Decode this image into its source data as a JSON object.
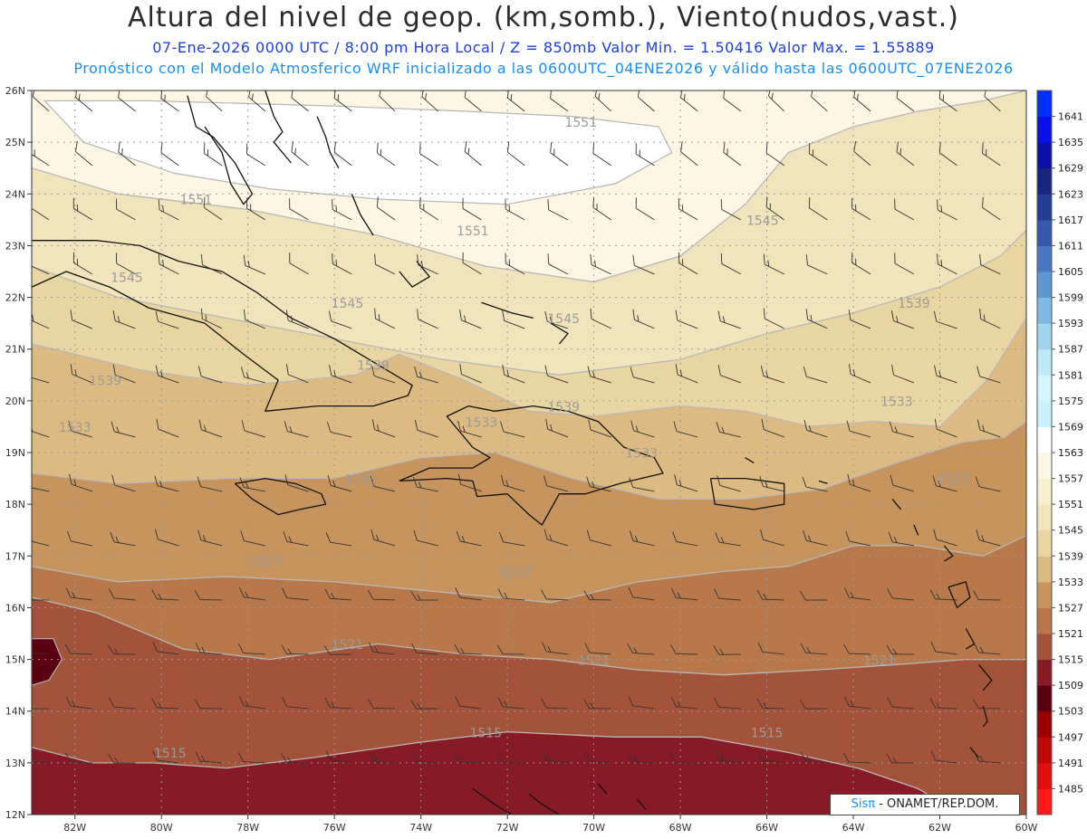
{
  "title": "Altura del nivel de geop. (km,somb.), Viento(nudos,vast.)",
  "subtitle": "07-Ene-2026  0000 UTC / 8:00 pm Hora Local / Z = 850mb     Valor Min. = 1.50416  Valor Max. = 1.55889",
  "subtitle2": "Pronóstico con el Modelo Atmosferico WRF inicializado a las 0600UTC_04ENE2026 y válido hasta las  0600UTC_07ENE2026",
  "credit": {
    "brand": "Sisπ",
    "org": " - ONAMET/REP.DOM."
  },
  "axes": {
    "lat_ticks": [
      "12N",
      "13N",
      "14N",
      "15N",
      "16N",
      "17N",
      "18N",
      "19N",
      "20N",
      "21N",
      "22N",
      "23N",
      "24N",
      "25N",
      "26N"
    ],
    "lon_ticks": [
      "82W",
      "80W",
      "78W",
      "76W",
      "74W",
      "72W",
      "70W",
      "68W",
      "66W",
      "64W",
      "62W",
      "60W"
    ]
  },
  "colorbar": {
    "levels": [
      "1485",
      "1491",
      "1497",
      "1503",
      "1509",
      "1515",
      "1521",
      "1527",
      "1533",
      "1539",
      "1545",
      "1551",
      "1557",
      "1563",
      "1569",
      "1575",
      "1581",
      "1587",
      "1593",
      "1599",
      "1605",
      "1611",
      "1617",
      "1623",
      "1629",
      "1635",
      "1641"
    ],
    "colors": [
      "#ff1a1a",
      "#e01010",
      "#c00808",
      "#9a0000",
      "#5a0010",
      "#861a25",
      "#a3533a",
      "#b8784a",
      "#c6945c",
      "#dcbb82",
      "#e9d5a2",
      "#f1e4bd",
      "#f7efd0",
      "#fcf6e2",
      "#ffffff",
      "#c9f1fb",
      "#d6f4fc",
      "#bfe9f8",
      "#9fd3ee",
      "#7fb9e2",
      "#5c98d2",
      "#4a78c0",
      "#3558aa",
      "#243c94",
      "#1a257e",
      "#0c10a8",
      "#0a10e8",
      "#0030ff"
    ]
  },
  "chart_data": {
    "type": "heatmap",
    "title": "Altura del nivel de geop. (km,somb.), Viento(nudos,vast.)",
    "xlim": [
      -83,
      -60
    ],
    "ylim": [
      12,
      26
    ],
    "valid_time": "07-Ene-2026 0000 UTC",
    "level": "850mb",
    "min_value": 1.50416,
    "max_value": 1.55889,
    "contour_labels": [
      {
        "v": "1551",
        "lon": -70.3,
        "lat": 25.3
      },
      {
        "v": "1551",
        "lon": -79.2,
        "lat": 23.8
      },
      {
        "v": "1551",
        "lon": -72.8,
        "lat": 23.2
      },
      {
        "v": "1545",
        "lon": -66.1,
        "lat": 23.4
      },
      {
        "v": "1545",
        "lon": -80.8,
        "lat": 22.3
      },
      {
        "v": "1545",
        "lon": -75.7,
        "lat": 21.8
      },
      {
        "v": "1545",
        "lon": -70.7,
        "lat": 21.5
      },
      {
        "v": "1539",
        "lon": -62.6,
        "lat": 21.8
      },
      {
        "v": "1539",
        "lon": -81.3,
        "lat": 20.3
      },
      {
        "v": "1539",
        "lon": -75.1,
        "lat": 20.6
      },
      {
        "v": "1539",
        "lon": -70.7,
        "lat": 19.8
      },
      {
        "v": "1533",
        "lon": -63.0,
        "lat": 19.9
      },
      {
        "v": "1533",
        "lon": -82.0,
        "lat": 19.4
      },
      {
        "v": "1533",
        "lon": -72.6,
        "lat": 19.5
      },
      {
        "v": "1533",
        "lon": -75.4,
        "lat": 18.4
      },
      {
        "v": "1533",
        "lon": -68.9,
        "lat": 18.9
      },
      {
        "v": "1527",
        "lon": -61.7,
        "lat": 18.4
      },
      {
        "v": "1527",
        "lon": -77.6,
        "lat": 16.8
      },
      {
        "v": "1527",
        "lon": -71.8,
        "lat": 16.6
      },
      {
        "v": "1521",
        "lon": -75.7,
        "lat": 15.2
      },
      {
        "v": "1521",
        "lon": -70.0,
        "lat": 14.9
      },
      {
        "v": "1521",
        "lon": -63.4,
        "lat": 14.9
      },
      {
        "v": "1515",
        "lon": -72.5,
        "lat": 13.5
      },
      {
        "v": "1515",
        "lon": -79.8,
        "lat": 13.1
      },
      {
        "v": "1515",
        "lon": -66.0,
        "lat": 13.5
      }
    ],
    "boundaries": [
      {
        "level": "1563",
        "closed": true,
        "pts": [
          [
            -80.3,
            25.8
          ],
          [
            -76,
            25.7
          ],
          [
            -73,
            25.6
          ],
          [
            -70.5,
            25.5
          ],
          [
            -68.5,
            25.3
          ],
          [
            -68.2,
            24.8
          ],
          [
            -69.5,
            24.2
          ],
          [
            -72,
            23.8
          ],
          [
            -75,
            23.9
          ],
          [
            -77.5,
            24.1
          ],
          [
            -79.7,
            24.4
          ],
          [
            -81.8,
            25.0
          ],
          [
            -82.7,
            25.8
          ]
        ]
      },
      {
        "level": "1551",
        "pts": [
          [
            -83,
            24.5
          ],
          [
            -81,
            24.0
          ],
          [
            -78,
            23.7
          ],
          [
            -75,
            23.2
          ],
          [
            -72.5,
            22.6
          ],
          [
            -70,
            22.3
          ],
          [
            -68,
            22.8
          ],
          [
            -66.5,
            23.8
          ],
          [
            -65.5,
            24.8
          ],
          [
            -64,
            25.3
          ],
          [
            -62.5,
            25.6
          ],
          [
            -61,
            25.8
          ],
          [
            -60,
            26
          ]
        ]
      },
      {
        "level": "1545",
        "pts": [
          [
            -83,
            22.6
          ],
          [
            -81,
            22.0
          ],
          [
            -78.5,
            21.6
          ],
          [
            -76,
            21.2
          ],
          [
            -73.5,
            20.8
          ],
          [
            -70.8,
            20.5
          ],
          [
            -68,
            20.8
          ],
          [
            -66,
            21.3
          ],
          [
            -64,
            21.7
          ],
          [
            -62,
            22.2
          ],
          [
            -60.6,
            22.8
          ],
          [
            -60,
            23.3
          ]
        ]
      },
      {
        "level": "1539",
        "pts": [
          [
            -83,
            21.1
          ],
          [
            -80.5,
            20.6
          ],
          [
            -78,
            20.3
          ],
          [
            -75.5,
            20.5
          ],
          [
            -74.5,
            20.9
          ],
          [
            -73,
            20.4
          ],
          [
            -71.5,
            19.8
          ],
          [
            -70,
            19.7
          ],
          [
            -68,
            19.9
          ],
          [
            -66.5,
            19.8
          ],
          [
            -65,
            19.5
          ],
          [
            -63.5,
            19.6
          ],
          [
            -62,
            19.5
          ],
          [
            -60.9,
            20.4
          ],
          [
            -60,
            21.6
          ]
        ]
      },
      {
        "level": "1533",
        "pts": [
          [
            -83,
            18.6
          ],
          [
            -81,
            18.4
          ],
          [
            -78.5,
            18.5
          ],
          [
            -76,
            18.5
          ],
          [
            -74,
            18.9
          ],
          [
            -72.3,
            19.0
          ],
          [
            -70.5,
            18.5
          ],
          [
            -68.5,
            18.1
          ],
          [
            -66.5,
            18.1
          ],
          [
            -64.7,
            18.3
          ],
          [
            -63,
            18.8
          ],
          [
            -61.5,
            19.2
          ],
          [
            -60.5,
            19.3
          ],
          [
            -60,
            19.6
          ]
        ]
      },
      {
        "level": "1527",
        "pts": [
          [
            -83,
            16.8
          ],
          [
            -81,
            16.5
          ],
          [
            -78.5,
            16.6
          ],
          [
            -76,
            16.5
          ],
          [
            -73.5,
            16.3
          ],
          [
            -71,
            16.1
          ],
          [
            -69,
            16.5
          ],
          [
            -67,
            16.7
          ],
          [
            -65.5,
            16.8
          ],
          [
            -64,
            17.2
          ],
          [
            -62.5,
            17.2
          ],
          [
            -61,
            17.0
          ],
          [
            -60,
            17.4
          ]
        ]
      },
      {
        "level": "1521",
        "pts": [
          [
            -83,
            16.2
          ],
          [
            -81.5,
            15.9
          ],
          [
            -79.5,
            15.2
          ],
          [
            -77.5,
            15.0
          ],
          [
            -75,
            15.3
          ],
          [
            -73,
            15.1
          ],
          [
            -71,
            15.0
          ],
          [
            -69,
            14.8
          ],
          [
            -67,
            14.7
          ],
          [
            -64.8,
            14.8
          ],
          [
            -63,
            14.9
          ],
          [
            -61.4,
            15.0
          ],
          [
            -60,
            15.0
          ]
        ]
      },
      {
        "level": "1515",
        "pts": [
          [
            -83,
            13.3
          ],
          [
            -81.6,
            13.0
          ],
          [
            -80.2,
            13.0
          ],
          [
            -78.5,
            12.9
          ],
          [
            -76.5,
            13.1
          ],
          [
            -74,
            13.4
          ],
          [
            -72,
            13.6
          ],
          [
            -69.5,
            13.5
          ],
          [
            -67.5,
            13.5
          ],
          [
            -65.5,
            13.2
          ],
          [
            -63.9,
            12.9
          ],
          [
            -62.5,
            12.5
          ],
          [
            -61.5,
            12.0
          ]
        ]
      },
      {
        "level": "1509",
        "closed": true,
        "pts": [
          [
            -83,
            15.4
          ],
          [
            -82.5,
            15.4
          ],
          [
            -82.3,
            15.0
          ],
          [
            -82.6,
            14.6
          ],
          [
            -83,
            14.5
          ]
        ]
      }
    ],
    "coastlines": [
      [
        [
          -83,
          23.1
        ],
        [
          -81.5,
          23.1
        ],
        [
          -80.5,
          23.0
        ],
        [
          -79.6,
          22.7
        ],
        [
          -78.6,
          22.5
        ],
        [
          -77.8,
          22.1
        ],
        [
          -77.0,
          21.6
        ],
        [
          -76.0,
          21.2
        ],
        [
          -75.6,
          21.0
        ],
        [
          -74.8,
          20.6
        ],
        [
          -74.2,
          20.3
        ],
        [
          -74.3,
          20.1
        ],
        [
          -75.1,
          19.9
        ],
        [
          -76.4,
          19.9
        ],
        [
          -77.6,
          19.8
        ],
        [
          -77.3,
          20.4
        ],
        [
          -78.1,
          20.9
        ],
        [
          -79.0,
          21.5
        ],
        [
          -80.3,
          21.8
        ],
        [
          -81.2,
          22.2
        ],
        [
          -82.2,
          22.5
        ],
        [
          -83,
          22.2
        ]
      ],
      [
        [
          -78.3,
          18.4
        ],
        [
          -77.6,
          18.5
        ],
        [
          -76.9,
          18.4
        ],
        [
          -76.3,
          18.2
        ],
        [
          -76.2,
          18.0
        ],
        [
          -76.8,
          17.9
        ],
        [
          -77.3,
          17.8
        ],
        [
          -77.9,
          18.1
        ],
        [
          -78.3,
          18.4
        ]
      ],
      [
        [
          -74.5,
          18.45
        ],
        [
          -73.4,
          18.5
        ],
        [
          -72.8,
          18.45
        ],
        [
          -72.7,
          18.15
        ],
        [
          -72.0,
          18.2
        ],
        [
          -71.5,
          17.8
        ],
        [
          -71.2,
          17.6
        ],
        [
          -70.8,
          18.2
        ],
        [
          -70.2,
          18.2
        ],
        [
          -69.4,
          18.4
        ],
        [
          -68.4,
          18.6
        ],
        [
          -68.6,
          18.9
        ],
        [
          -69.3,
          19.1
        ],
        [
          -69.9,
          19.6
        ],
        [
          -70.6,
          19.8
        ],
        [
          -71.4,
          19.9
        ],
        [
          -72.3,
          19.8
        ],
        [
          -72.9,
          19.9
        ],
        [
          -73.4,
          19.7
        ],
        [
          -72.8,
          19.1
        ],
        [
          -72.4,
          18.9
        ],
        [
          -72.8,
          18.7
        ],
        [
          -73.8,
          18.7
        ],
        [
          -74.5,
          18.45
        ]
      ],
      [
        [
          -67.3,
          18.5
        ],
        [
          -66.5,
          18.5
        ],
        [
          -65.6,
          18.4
        ],
        [
          -65.6,
          18.0
        ],
        [
          -66.3,
          17.9
        ],
        [
          -67.2,
          18.0
        ],
        [
          -67.3,
          18.5
        ]
      ],
      [
        [
          -79.4,
          25.9
        ],
        [
          -79.2,
          25.3
        ],
        [
          -78.8,
          25.1
        ],
        [
          -78.3,
          24.6
        ],
        [
          -77.9,
          24.0
        ],
        [
          -78.1,
          23.8
        ],
        [
          -78.4,
          24.2
        ],
        [
          -78.6,
          24.8
        ],
        [
          -79.0,
          25.3
        ]
      ],
      [
        [
          -77.6,
          26.0
        ],
        [
          -77.4,
          25.5
        ],
        [
          -77.2,
          25.2
        ],
        [
          -77.4,
          25.0
        ],
        [
          -77.0,
          24.6
        ]
      ],
      [
        [
          -76.4,
          25.5
        ],
        [
          -76.2,
          25.1
        ],
        [
          -76.1,
          24.8
        ],
        [
          -75.9,
          24.5
        ]
      ],
      [
        [
          -75.6,
          24.0
        ],
        [
          -75.4,
          23.6
        ],
        [
          -75.1,
          23.2
        ]
      ],
      [
        [
          -74.1,
          22.7
        ],
        [
          -73.8,
          22.4
        ],
        [
          -74.2,
          22.2
        ],
        [
          -74.5,
          22.5
        ]
      ],
      [
        [
          -72.6,
          21.9
        ],
        [
          -71.9,
          21.7
        ],
        [
          -71.4,
          21.6
        ]
      ],
      [
        [
          -71.0,
          21.5
        ],
        [
          -70.6,
          21.3
        ],
        [
          -70.8,
          21.1
        ]
      ],
      [
        [
          -61.9,
          17.2
        ],
        [
          -61.7,
          17.0
        ],
        [
          -61.9,
          16.9
        ]
      ],
      [
        [
          -61.8,
          16.4
        ],
        [
          -61.4,
          16.5
        ],
        [
          -61.3,
          16.2
        ],
        [
          -61.6,
          16.0
        ],
        [
          -61.7,
          16.2
        ],
        [
          -61.8,
          16.4
        ]
      ],
      [
        [
          -61.4,
          15.6
        ],
        [
          -61.2,
          15.3
        ],
        [
          -61.4,
          15.2
        ]
      ],
      [
        [
          -61.1,
          14.9
        ],
        [
          -60.8,
          14.6
        ],
        [
          -61.0,
          14.4
        ]
      ],
      [
        [
          -61.0,
          14.1
        ],
        [
          -60.9,
          13.8
        ],
        [
          -61.0,
          13.7
        ]
      ],
      [
        [
          -61.3,
          13.3
        ],
        [
          -61.1,
          13.1
        ]
      ],
      [
        [
          -61.8,
          12.3
        ],
        [
          -61.6,
          12.0
        ]
      ],
      [
        [
          -71.5,
          12.4
        ],
        [
          -71.2,
          12.2
        ],
        [
          -70.8,
          12.0
        ]
      ],
      [
        [
          -72.8,
          12.5
        ],
        [
          -72.3,
          12.2
        ],
        [
          -71.9,
          12.0
        ]
      ],
      [
        [
          -69.9,
          12.6
        ],
        [
          -69.7,
          12.4
        ]
      ],
      [
        [
          -69.0,
          12.3
        ],
        [
          -68.8,
          12.1
        ]
      ],
      [
        [
          -64.8,
          18.45
        ],
        [
          -64.6,
          18.4
        ]
      ],
      [
        [
          -63.1,
          18.1
        ],
        [
          -62.9,
          17.9
        ]
      ],
      [
        [
          -62.6,
          17.6
        ],
        [
          -62.5,
          17.4
        ]
      ],
      [
        [
          -66.5,
          18.9
        ],
        [
          -66.3,
          18.8
        ]
      ]
    ]
  }
}
